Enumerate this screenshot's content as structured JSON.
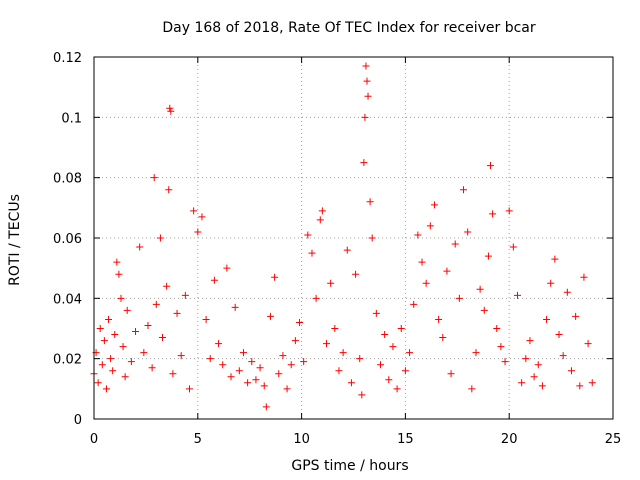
{
  "chart_data": {
    "type": "scatter",
    "title": "Day 168 of 2018, Rate Of TEC Index for receiver bcar",
    "xlabel": "GPS time / hours",
    "ylabel": "ROTI / TECUs",
    "xlim": [
      0,
      25
    ],
    "ylim": [
      0,
      0.12
    ],
    "x_ticks": [
      0,
      5,
      10,
      15,
      20,
      25
    ],
    "y_ticks": [
      0,
      0.02,
      0.04,
      0.06,
      0.08,
      0.1,
      0.12
    ],
    "x_tick_labels": [
      "0",
      "5",
      "10",
      "15",
      "20",
      "25"
    ],
    "y_tick_labels": [
      "0",
      "0.02",
      "0.04",
      "0.06",
      "0.08",
      "0.1",
      "0.12"
    ],
    "grid": true,
    "marker": "plus",
    "series_color": "#ff0000",
    "series": [
      {
        "points": [
          [
            0.0,
            0.015
          ],
          [
            0.1,
            0.022
          ],
          [
            0.2,
            0.012
          ],
          [
            0.3,
            0.03
          ],
          [
            0.4,
            0.018
          ],
          [
            0.5,
            0.026
          ],
          [
            0.6,
            0.01
          ],
          [
            0.7,
            0.033
          ],
          [
            0.8,
            0.02
          ],
          [
            0.9,
            0.016
          ],
          [
            1.0,
            0.028
          ],
          [
            1.1,
            0.052
          ],
          [
            1.2,
            0.048
          ],
          [
            1.3,
            0.04
          ],
          [
            1.4,
            0.024
          ],
          [
            1.5,
            0.014
          ],
          [
            1.6,
            0.036
          ],
          [
            1.8,
            0.019
          ],
          [
            2.0,
            0.029
          ],
          [
            2.2,
            0.057
          ],
          [
            2.4,
            0.022
          ],
          [
            2.6,
            0.031
          ],
          [
            2.8,
            0.017
          ],
          [
            2.9,
            0.08
          ],
          [
            3.0,
            0.038
          ],
          [
            3.2,
            0.06
          ],
          [
            3.3,
            0.027
          ],
          [
            3.5,
            0.044
          ],
          [
            3.6,
            0.076
          ],
          [
            3.65,
            0.103
          ],
          [
            3.7,
            0.102
          ],
          [
            3.8,
            0.015
          ],
          [
            4.0,
            0.035
          ],
          [
            4.2,
            0.021
          ],
          [
            4.4,
            0.041
          ],
          [
            4.6,
            0.01
          ],
          [
            4.8,
            0.069
          ],
          [
            5.0,
            0.062
          ],
          [
            5.2,
            0.067
          ],
          [
            5.4,
            0.033
          ],
          [
            5.6,
            0.02
          ],
          [
            5.8,
            0.046
          ],
          [
            6.0,
            0.025
          ],
          [
            6.2,
            0.018
          ],
          [
            6.4,
            0.05
          ],
          [
            6.6,
            0.014
          ],
          [
            6.8,
            0.037
          ],
          [
            7.0,
            0.016
          ],
          [
            7.2,
            0.022
          ],
          [
            7.4,
            0.012
          ],
          [
            7.6,
            0.019
          ],
          [
            7.8,
            0.013
          ],
          [
            8.0,
            0.017
          ],
          [
            8.2,
            0.011
          ],
          [
            8.3,
            0.004
          ],
          [
            8.5,
            0.034
          ],
          [
            8.7,
            0.047
          ],
          [
            8.9,
            0.015
          ],
          [
            9.1,
            0.021
          ],
          [
            9.3,
            0.01
          ],
          [
            9.5,
            0.018
          ],
          [
            9.7,
            0.026
          ],
          [
            9.9,
            0.032
          ],
          [
            10.1,
            0.019
          ],
          [
            10.3,
            0.061
          ],
          [
            10.5,
            0.055
          ],
          [
            10.7,
            0.04
          ],
          [
            10.9,
            0.066
          ],
          [
            11.0,
            0.069
          ],
          [
            11.2,
            0.025
          ],
          [
            11.4,
            0.045
          ],
          [
            11.6,
            0.03
          ],
          [
            11.8,
            0.016
          ],
          [
            12.0,
            0.022
          ],
          [
            12.2,
            0.056
          ],
          [
            12.4,
            0.012
          ],
          [
            12.6,
            0.048
          ],
          [
            12.8,
            0.02
          ],
          [
            12.9,
            0.008
          ],
          [
            13.0,
            0.085
          ],
          [
            13.05,
            0.1
          ],
          [
            13.1,
            0.117
          ],
          [
            13.15,
            0.112
          ],
          [
            13.2,
            0.107
          ],
          [
            13.3,
            0.072
          ],
          [
            13.4,
            0.06
          ],
          [
            13.6,
            0.035
          ],
          [
            13.8,
            0.018
          ],
          [
            14.0,
            0.028
          ],
          [
            14.2,
            0.013
          ],
          [
            14.4,
            0.024
          ],
          [
            14.6,
            0.01
          ],
          [
            14.8,
            0.03
          ],
          [
            15.0,
            0.016
          ],
          [
            15.2,
            0.022
          ],
          [
            15.4,
            0.038
          ],
          [
            15.6,
            0.061
          ],
          [
            15.8,
            0.052
          ],
          [
            16.0,
            0.045
          ],
          [
            16.2,
            0.064
          ],
          [
            16.4,
            0.071
          ],
          [
            16.6,
            0.033
          ],
          [
            16.8,
            0.027
          ],
          [
            17.0,
            0.049
          ],
          [
            17.2,
            0.015
          ],
          [
            17.4,
            0.058
          ],
          [
            17.6,
            0.04
          ],
          [
            17.8,
            0.076
          ],
          [
            18.0,
            0.062
          ],
          [
            18.2,
            0.01
          ],
          [
            18.4,
            0.022
          ],
          [
            18.6,
            0.043
          ],
          [
            18.8,
            0.036
          ],
          [
            19.0,
            0.054
          ],
          [
            19.1,
            0.084
          ],
          [
            19.2,
            0.068
          ],
          [
            19.4,
            0.03
          ],
          [
            19.6,
            0.024
          ],
          [
            19.8,
            0.019
          ],
          [
            20.0,
            0.069
          ],
          [
            20.2,
            0.057
          ],
          [
            20.4,
            0.041
          ],
          [
            20.6,
            0.012
          ],
          [
            20.8,
            0.02
          ],
          [
            21.0,
            0.026
          ],
          [
            21.2,
            0.014
          ],
          [
            21.4,
            0.018
          ],
          [
            21.6,
            0.011
          ],
          [
            21.8,
            0.033
          ],
          [
            22.0,
            0.045
          ],
          [
            22.2,
            0.053
          ],
          [
            22.4,
            0.028
          ],
          [
            22.6,
            0.021
          ],
          [
            22.8,
            0.042
          ],
          [
            23.0,
            0.016
          ],
          [
            23.2,
            0.034
          ],
          [
            23.4,
            0.011
          ],
          [
            23.6,
            0.047
          ],
          [
            23.8,
            0.025
          ],
          [
            24.0,
            0.012
          ]
        ]
      }
    ]
  }
}
